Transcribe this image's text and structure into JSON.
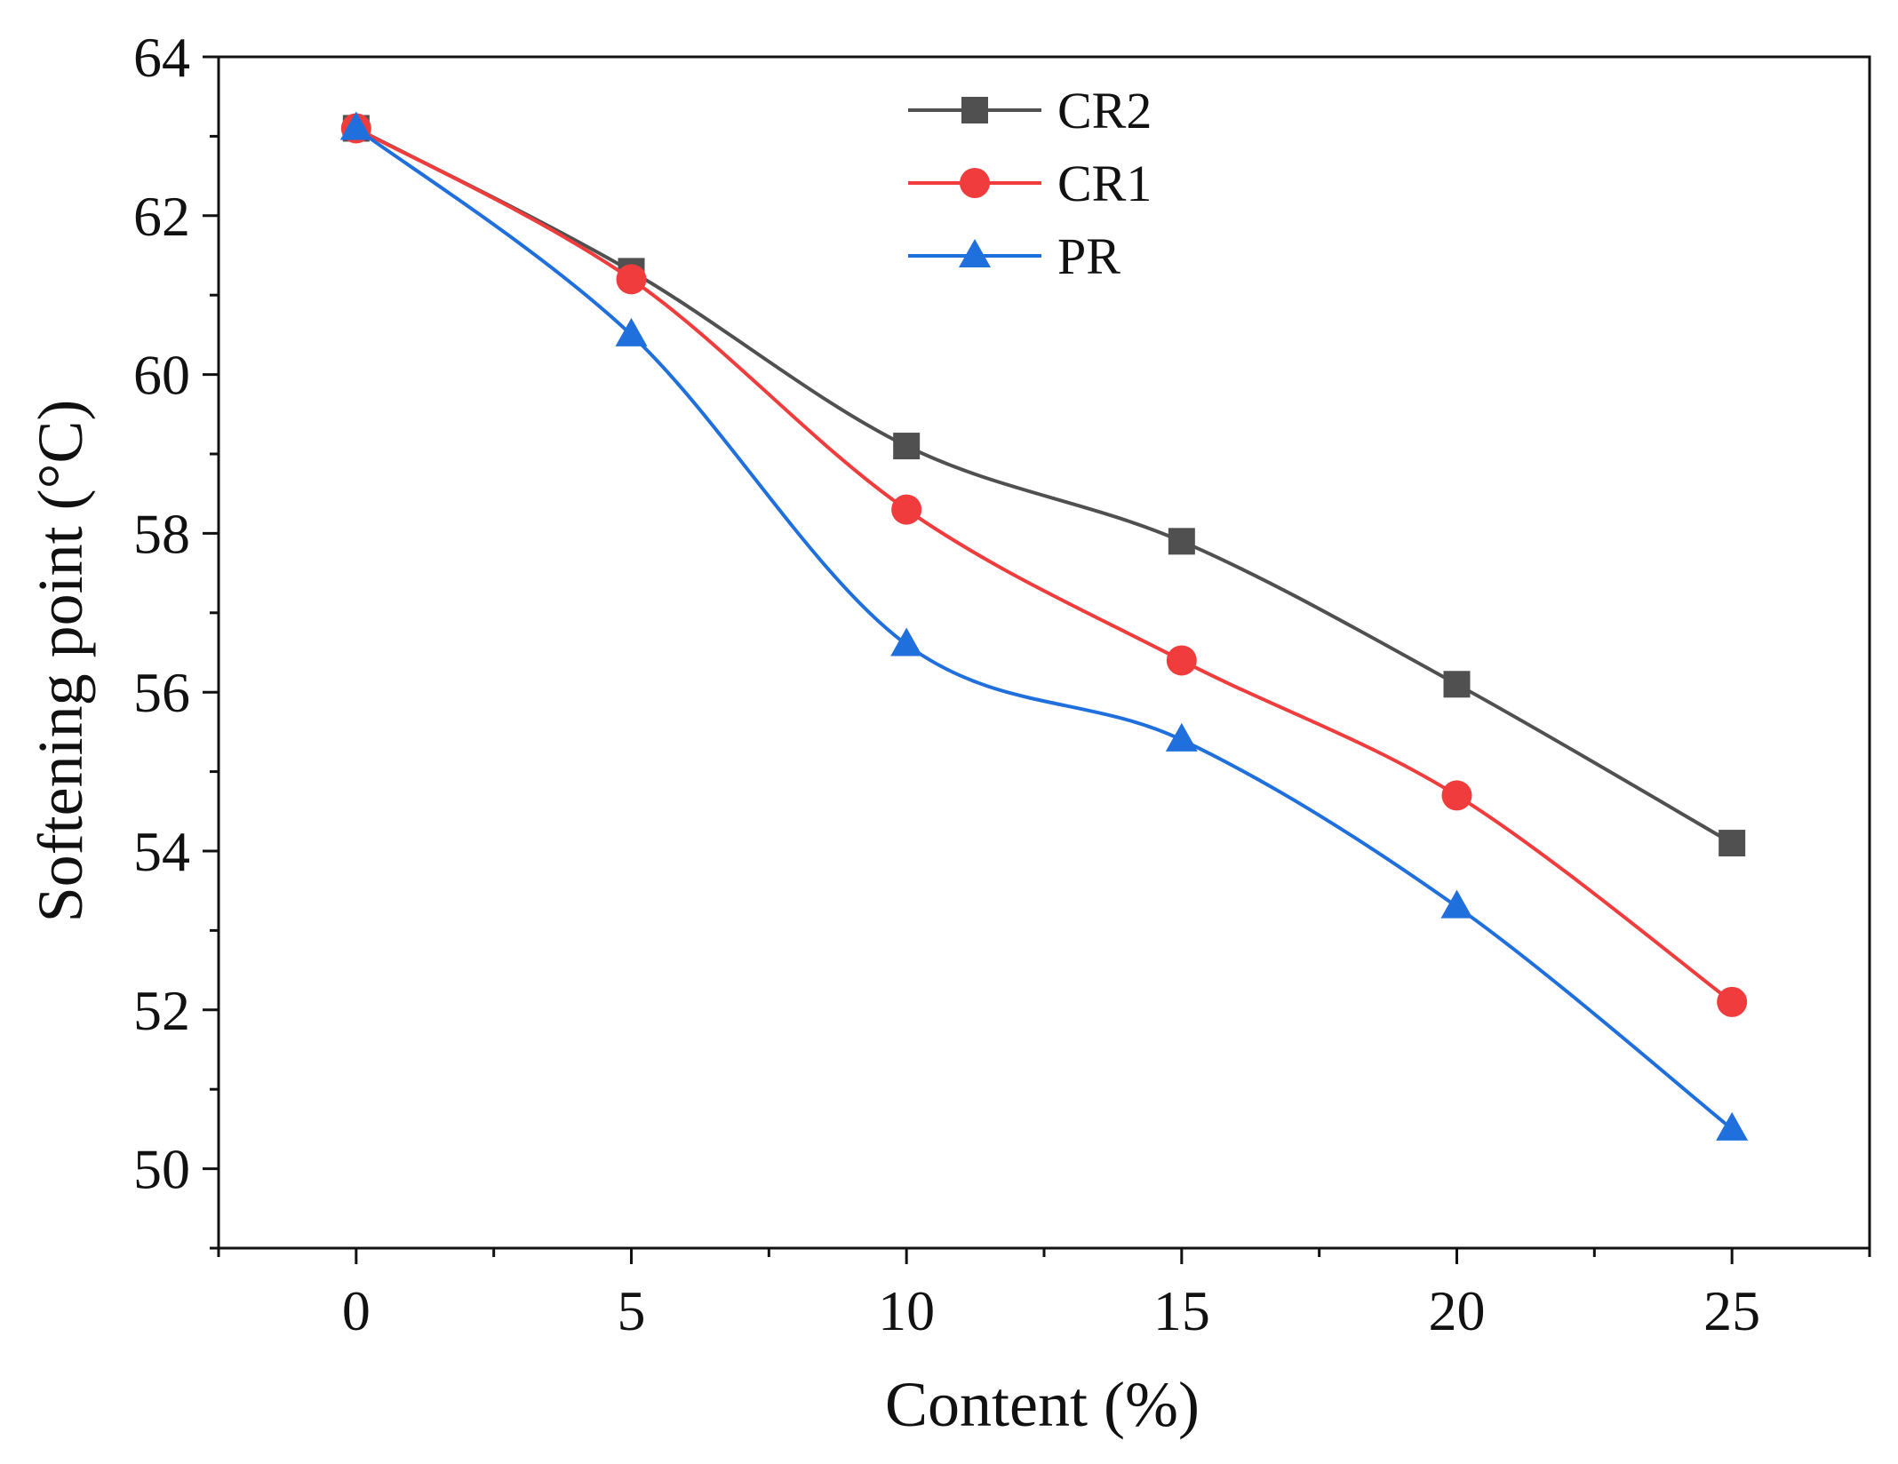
{
  "chart_data": {
    "type": "line",
    "title": "",
    "xlabel": "Content (%)",
    "ylabel": "Softening point (°C)",
    "x": [
      0,
      5,
      10,
      15,
      20,
      25
    ],
    "xlim": [
      -2.5,
      27.5
    ],
    "ylim": [
      49,
      64
    ],
    "xticks": [
      "0",
      "5",
      "10",
      "15",
      "20",
      "25"
    ],
    "yticks": [
      "50",
      "52",
      "54",
      "56",
      "58",
      "60",
      "62",
      "64"
    ],
    "grid": false,
    "legend_position": "top-center",
    "series": [
      {
        "name": "CR2",
        "marker": "square",
        "color": "#505050",
        "values": [
          63.1,
          61.3,
          59.1,
          57.9,
          56.1,
          54.1
        ]
      },
      {
        "name": "CR1",
        "marker": "circle",
        "color": "#f03c3c",
        "values": [
          63.1,
          61.2,
          58.3,
          56.4,
          54.7,
          52.1
        ]
      },
      {
        "name": "PR",
        "marker": "triangle",
        "color": "#1f6fdc",
        "values": [
          63.1,
          60.5,
          56.6,
          55.4,
          53.3,
          50.5
        ]
      }
    ]
  }
}
